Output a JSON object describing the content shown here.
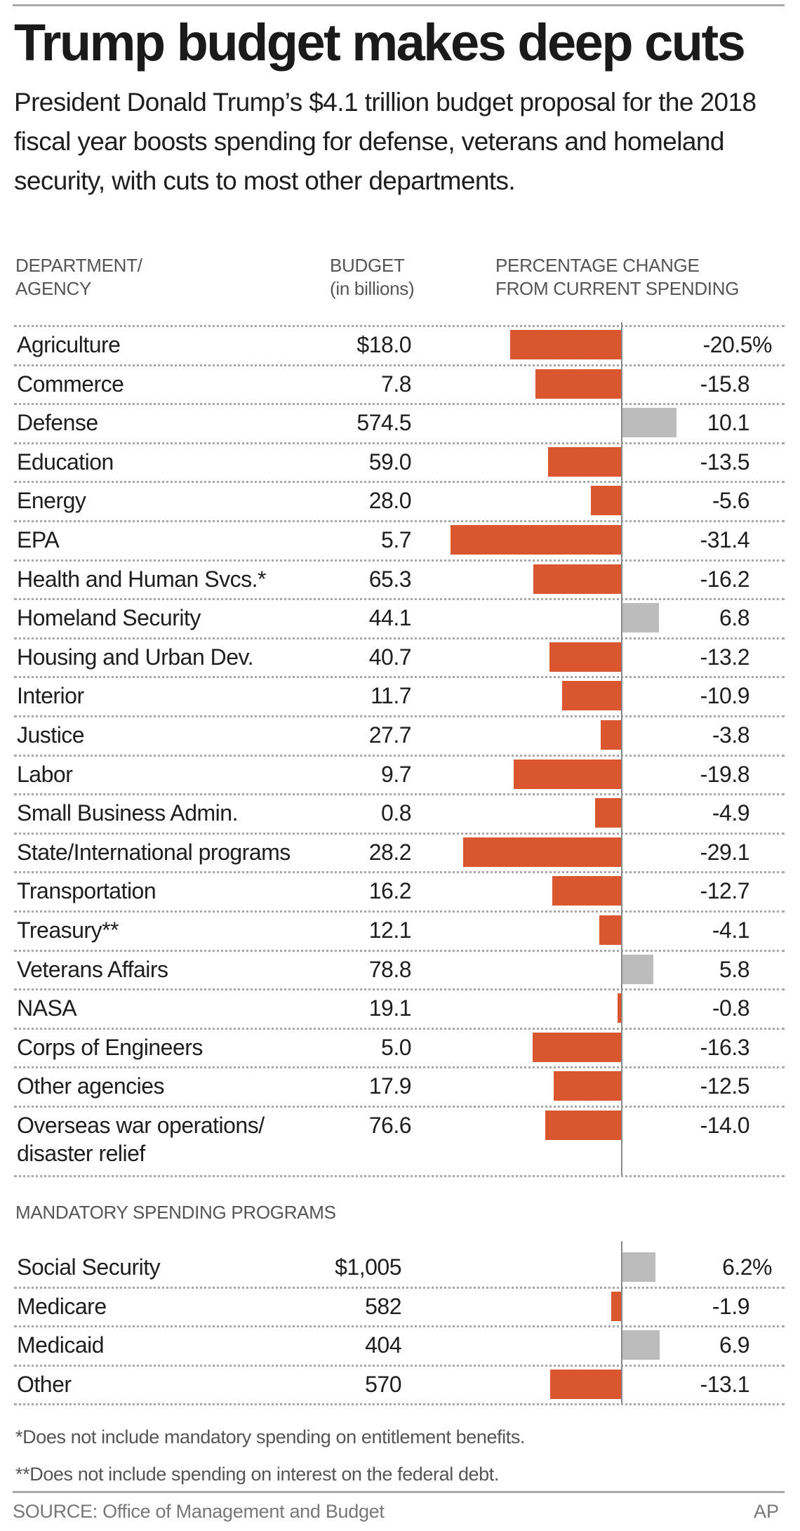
{
  "header": {
    "title": "Trump budget makes deep cuts",
    "subtitle": "President Donald Trump’s $4.1 trillion budget proposal for the 2018 fiscal year boosts spending for defense, veterans and homeland security, with cuts to most other departments."
  },
  "columns": {
    "department": [
      "DEPARTMENT/",
      "AGENCY"
    ],
    "budget": [
      "BUDGET",
      "(in billions)"
    ],
    "change": [
      "PERCENTAGE CHANGE",
      "FROM CURRENT SPENDING"
    ]
  },
  "colors": {
    "decrease": "#d9562e",
    "increase": "#bcbcbc"
  },
  "chart_data": [
    {
      "type": "bar",
      "orientation": "horizontal",
      "title": "Discretionary departments/agencies",
      "xlabel": "Percentage change from current spending",
      "categories": [
        "Agriculture",
        "Commerce",
        "Defense",
        "Education",
        "Energy",
        "EPA",
        "Health and Human Svcs.*",
        "Homeland Security",
        "Housing and Urban Dev.",
        "Interior",
        "Justice",
        "Labor",
        "Small Business Admin.",
        "State/International programs",
        "Transportation",
        "Treasury**",
        "Veterans Affairs",
        "NASA",
        "Corps of Engineers",
        "Other agencies",
        "Overseas war operations/\ndisaster relief"
      ],
      "budget_labels": [
        "$18.0",
        "7.8",
        "574.5",
        "59.0",
        "28.0",
        "5.7",
        "65.3",
        "44.1",
        "40.7",
        "11.7",
        "27.7",
        "9.7",
        "0.8",
        "28.2",
        "16.2",
        "12.1",
        "78.8",
        "19.1",
        "5.0",
        "17.9",
        "76.6"
      ],
      "values": [
        -20.5,
        -15.8,
        10.1,
        -13.5,
        -5.6,
        -31.4,
        -16.2,
        6.8,
        -13.2,
        -10.9,
        -3.8,
        -19.8,
        -4.9,
        -29.1,
        -12.7,
        -4.1,
        5.8,
        -0.8,
        -16.3,
        -12.5,
        -14.0
      ],
      "value_labels": [
        "-20.5%",
        "-15.8",
        "10.1",
        "-13.5",
        "-5.6",
        "-31.4",
        "-16.2",
        "6.8",
        "-13.2",
        "-10.9",
        "-3.8",
        "-19.8",
        "-4.9",
        "-29.1",
        "-12.7",
        "-4.1",
        "5.8",
        "-0.8",
        "-16.3",
        "-12.5",
        "-14.0"
      ],
      "xlim": [
        -31.4,
        10.1
      ]
    },
    {
      "type": "bar",
      "orientation": "horizontal",
      "title": "MANDATORY SPENDING PROGRAMS",
      "categories": [
        "Social Security",
        "Medicare",
        "Medicaid",
        "Other"
      ],
      "budget_labels": [
        "$1,005",
        "582",
        "404",
        "570"
      ],
      "values": [
        6.2,
        -1.9,
        6.9,
        -13.1
      ],
      "value_labels": [
        "6.2%",
        "-1.9",
        "6.9",
        "-13.1"
      ]
    }
  ],
  "footnotes": [
    "*Does not include mandatory spending on entitlement benefits.",
    "**Does not include spending on interest on the federal debt."
  ],
  "source": "SOURCE: Office of Management and Budget",
  "credit": "AP"
}
